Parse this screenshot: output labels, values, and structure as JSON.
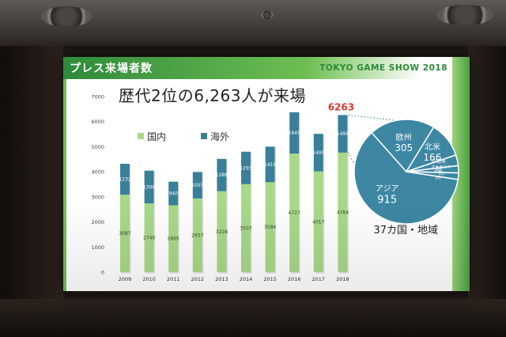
{
  "slide": {
    "title": "プレス来場者数",
    "brand": "TOKYO GAME SHOW 2018",
    "headline": "歴代2位の6,263人が来場",
    "total_label": "6263",
    "legend_domestic": "国内",
    "legend_overseas": "海外",
    "region_caption": "37カ国・地域"
  },
  "colors": {
    "domestic": "#a8d888",
    "overseas": "#3a7f99",
    "total_highlight": "#d63b2f",
    "pie": "#3d87a3"
  },
  "chart_data": [
    {
      "type": "bar",
      "stacked": true,
      "categories": [
        "2009",
        "2010",
        "2011",
        "2012",
        "2013",
        "2014",
        "2015",
        "2016",
        "2017",
        "2018"
      ],
      "series": [
        {
          "name": "国内",
          "values": [
            3087,
            2740,
            2665,
            2937,
            3228,
            3507,
            3584,
            4727,
            4017,
            4764
          ]
        },
        {
          "name": "海外",
          "values": [
            1232,
            1306,
            940,
            1055,
            1288,
            1293,
            1419,
            1645,
            1495,
            1499
          ]
        }
      ],
      "yticks": [
        0,
        1000,
        2000,
        3000,
        4000,
        5000,
        6000,
        7000
      ],
      "ylim": [
        0,
        7000
      ],
      "highlight_total": "6263"
    },
    {
      "type": "pie",
      "slices": [
        {
          "label": "アジア",
          "value": 915
        },
        {
          "label": "欧州",
          "value": 305
        },
        {
          "label": "北米",
          "value": 166
        },
        {
          "label": "中南米",
          "value": 50
        },
        {
          "label": "オセアニア",
          "value": 33
        },
        {
          "label": "中東",
          "value": 30
        }
      ]
    }
  ]
}
